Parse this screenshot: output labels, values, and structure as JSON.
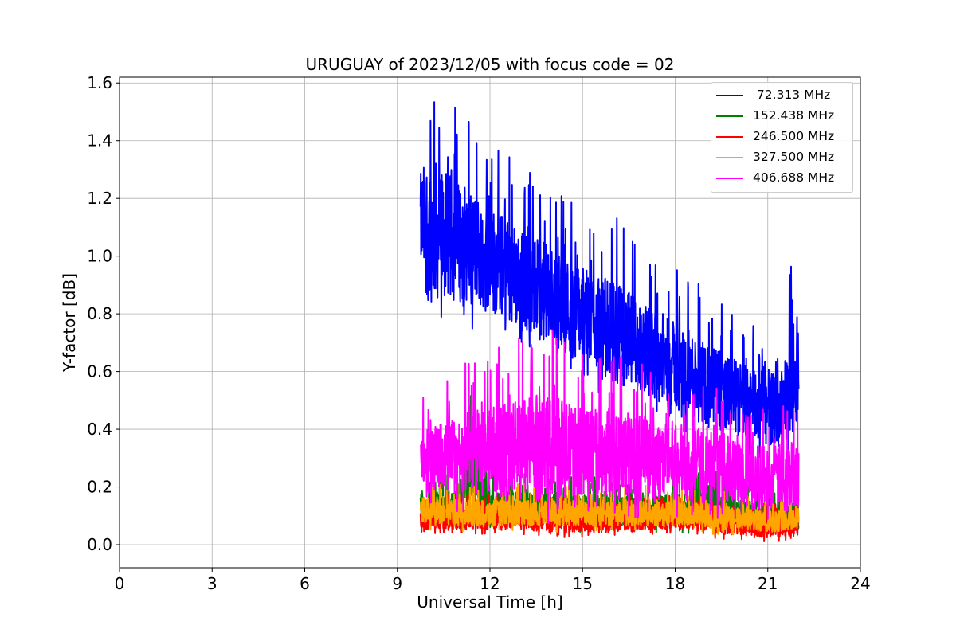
{
  "chart_data": {
    "type": "line",
    "title": "URUGUAY of 2023/12/05 with focus code = 02",
    "xlabel": "Universal Time [h]",
    "ylabel": "Y-factor [dB]",
    "xlim": [
      0,
      24
    ],
    "ylim": [
      -0.08,
      1.62
    ],
    "xticks": [
      0,
      3,
      6,
      9,
      12,
      15,
      18,
      21,
      24
    ],
    "yticks": [
      0.0,
      0.2,
      0.4,
      0.6,
      0.8,
      1.0,
      1.2,
      1.4,
      1.6
    ],
    "xtick_labels": [
      "0",
      "3",
      "6",
      "9",
      "12",
      "15",
      "18",
      "21",
      "24"
    ],
    "ytick_labels": [
      "0.0",
      "0.2",
      "0.4",
      "0.6",
      "0.8",
      "1.0",
      "1.2",
      "1.4",
      "1.6"
    ],
    "grid": true,
    "legend_position": "top-right",
    "series": [
      {
        "name": " 72.313 MHz",
        "color": "#0000ff",
        "x": [
          9.75,
          10.0,
          10.5,
          11.0,
          11.5,
          12.0,
          12.5,
          13.0,
          13.5,
          14.0,
          14.5,
          15.0,
          15.5,
          16.0,
          16.5,
          17.0,
          17.5,
          18.0,
          18.5,
          19.0,
          19.5,
          20.0,
          20.5,
          21.0,
          21.5,
          21.75,
          22.0
        ],
        "mid": [
          1.12,
          1.1,
          1.07,
          1.05,
          1.03,
          0.99,
          0.96,
          0.92,
          0.89,
          0.86,
          0.83,
          0.8,
          0.77,
          0.74,
          0.71,
          0.68,
          0.65,
          0.62,
          0.59,
          0.56,
          0.53,
          0.51,
          0.49,
          0.47,
          0.48,
          0.56,
          0.6
        ],
        "amp": [
          0.22,
          0.35,
          0.3,
          0.28,
          0.26,
          0.25,
          0.24,
          0.24,
          0.23,
          0.23,
          0.22,
          0.22,
          0.22,
          0.24,
          0.22,
          0.21,
          0.21,
          0.2,
          0.2,
          0.2,
          0.18,
          0.17,
          0.17,
          0.17,
          0.16,
          0.25,
          0.2
        ]
      },
      {
        "name": "152.438 MHz",
        "color": "#008000",
        "x": [
          9.75,
          11.0,
          11.3,
          12.0,
          13.0,
          14.0,
          15.0,
          16.0,
          17.0,
          18.0,
          19.0,
          20.0,
          21.0,
          22.0
        ],
        "mid": [
          0.14,
          0.13,
          0.3,
          0.13,
          0.13,
          0.12,
          0.12,
          0.12,
          0.12,
          0.12,
          0.14,
          0.11,
          0.1,
          0.1
        ],
        "amp": [
          0.07,
          0.07,
          0.2,
          0.07,
          0.07,
          0.07,
          0.07,
          0.07,
          0.07,
          0.07,
          0.1,
          0.06,
          0.06,
          0.06
        ]
      },
      {
        "name": "246.500 MHz",
        "color": "#ff0000",
        "x": [
          9.75,
          11.0,
          12.0,
          13.0,
          14.0,
          15.0,
          16.0,
          17.0,
          18.0,
          19.0,
          20.0,
          21.0,
          22.0
        ],
        "mid": [
          0.09,
          0.09,
          0.09,
          0.09,
          0.08,
          0.08,
          0.08,
          0.09,
          0.09,
          0.08,
          0.07,
          0.06,
          0.07
        ],
        "amp": [
          0.05,
          0.05,
          0.05,
          0.05,
          0.05,
          0.05,
          0.05,
          0.05,
          0.05,
          0.05,
          0.05,
          0.05,
          0.05
        ]
      },
      {
        "name": "327.500 MHz",
        "color": "#ffa500",
        "x": [
          9.75,
          11.0,
          12.0,
          13.0,
          14.0,
          15.0,
          16.0,
          17.0,
          18.0,
          19.0,
          20.0,
          21.0,
          22.0
        ],
        "mid": [
          0.12,
          0.11,
          0.11,
          0.11,
          0.11,
          0.11,
          0.11,
          0.11,
          0.11,
          0.1,
          0.09,
          0.08,
          0.09
        ],
        "amp": [
          0.06,
          0.06,
          0.06,
          0.06,
          0.06,
          0.06,
          0.06,
          0.06,
          0.06,
          0.06,
          0.05,
          0.05,
          0.05
        ]
      },
      {
        "name": "406.688 MHz",
        "color": "#ff00ff",
        "x": [
          9.75,
          10.5,
          11.0,
          11.5,
          12.0,
          12.5,
          13.0,
          13.5,
          14.0,
          14.5,
          15.0,
          15.5,
          16.0,
          16.5,
          17.0,
          17.5,
          18.0,
          18.5,
          19.0,
          19.5,
          20.0,
          20.5,
          21.0,
          21.5,
          22.0
        ],
        "mid": [
          0.3,
          0.3,
          0.31,
          0.32,
          0.32,
          0.33,
          0.33,
          0.33,
          0.34,
          0.33,
          0.32,
          0.32,
          0.32,
          0.31,
          0.3,
          0.3,
          0.29,
          0.28,
          0.27,
          0.27,
          0.25,
          0.24,
          0.23,
          0.24,
          0.25
        ],
        "amp": [
          0.12,
          0.17,
          0.18,
          0.2,
          0.2,
          0.22,
          0.23,
          0.25,
          0.24,
          0.22,
          0.2,
          0.2,
          0.22,
          0.2,
          0.2,
          0.19,
          0.18,
          0.17,
          0.17,
          0.16,
          0.15,
          0.15,
          0.15,
          0.15,
          0.16
        ]
      }
    ]
  }
}
